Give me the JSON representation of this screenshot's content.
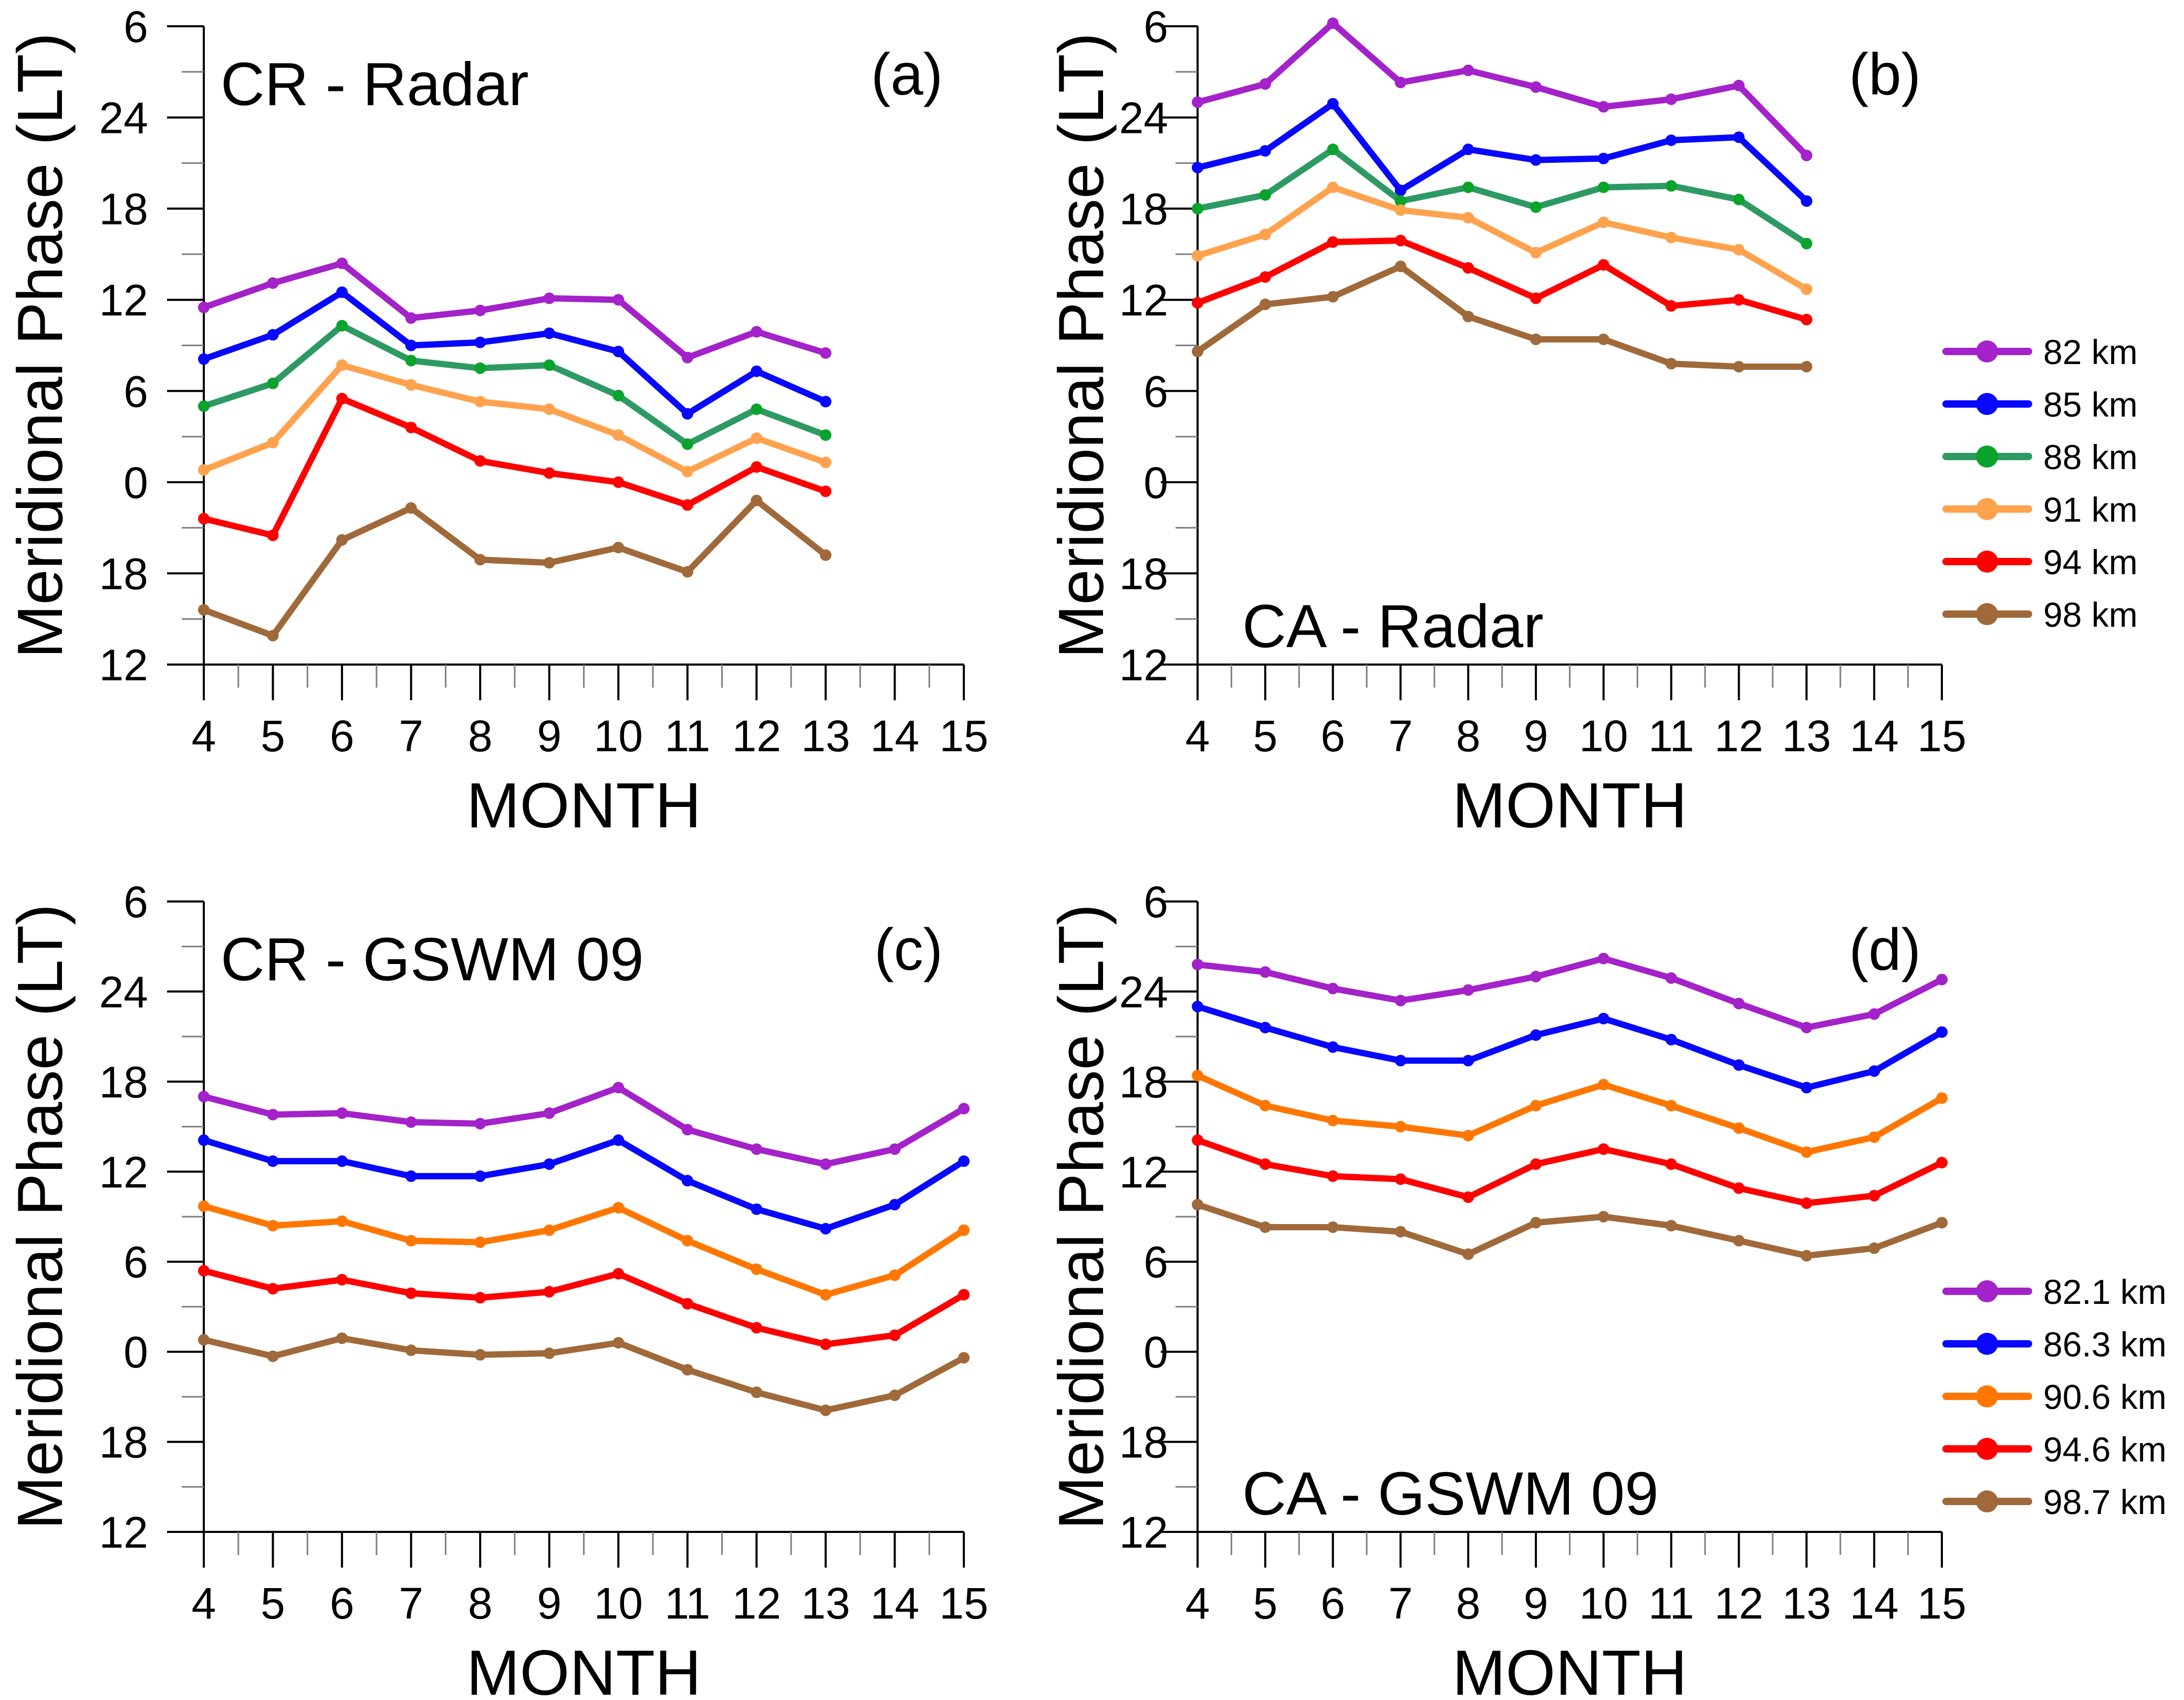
{
  "figure": {
    "y_axis_label": "Meridional Phase (LT)",
    "x_axis_label": "MONTH",
    "y_tick_labels": [
      "6",
      "24",
      "18",
      "12",
      "6",
      "0",
      "18",
      "12"
    ],
    "y_tick_values": [
      30,
      24,
      18,
      12,
      6,
      0,
      -6,
      -12
    ],
    "y_minor_tick_values": [
      27,
      21,
      15,
      9,
      3,
      -3,
      -9
    ],
    "x_ticks": [
      4,
      5,
      6,
      7,
      8,
      9,
      10,
      11,
      12,
      13,
      14,
      15
    ],
    "x_minor_ticks": [
      4.5,
      5.5,
      6.5,
      7.5,
      8.5,
      9.5,
      10.5,
      11.5,
      12.5,
      13.5,
      14.5
    ],
    "x_range": [
      4,
      15
    ],
    "y_linear_range": [
      -12,
      30
    ],
    "grid": "off",
    "colors": {
      "purple": "#a322c9",
      "blue": "#0808ff",
      "green_line": "#2e9a63",
      "green_marker": "#0aa32b",
      "orange_light": "#ffa24e",
      "orange_vivid": "#ff7700",
      "red": "#fe0000",
      "brown": "#a0693a",
      "axis": "#000000",
      "minor_tick": "#7f7f7f"
    }
  },
  "chart_data": [
    {
      "id": "a",
      "type": "line",
      "title": "CR - Radar",
      "panel_letter": "(a)",
      "title_position": "top-left",
      "xlabel": "MONTH",
      "ylabel": "Meridional Phase (LT)",
      "x": [
        4,
        5,
        6,
        7,
        8,
        9,
        10,
        11,
        12,
        13
      ],
      "series": [
        {
          "name": "82 km",
          "color": "#a322c9",
          "values": [
            11.5,
            13.1,
            14.4,
            10.8,
            11.3,
            12.1,
            12.0,
            8.2,
            9.9,
            8.5
          ]
        },
        {
          "name": "85 km",
          "color": "#0808ff",
          "values": [
            8.1,
            9.7,
            12.5,
            9.0,
            9.2,
            9.8,
            8.6,
            4.5,
            7.3,
            5.3
          ]
        },
        {
          "name": "88 km",
          "color": "#2e9a63",
          "marker_color": "#0aa32b",
          "values": [
            5.0,
            6.5,
            10.3,
            8.0,
            7.5,
            7.7,
            5.7,
            2.5,
            4.8,
            3.1
          ]
        },
        {
          "name": "91 km",
          "color": "#ffa24e",
          "values": [
            0.8,
            2.6,
            7.7,
            6.4,
            5.3,
            4.8,
            3.1,
            0.7,
            2.9,
            1.3
          ]
        },
        {
          "name": "94 km",
          "color": "#fe0000",
          "values": [
            -2.4,
            -3.5,
            5.5,
            3.6,
            1.4,
            0.6,
            0.0,
            -1.5,
            1.0,
            -0.6
          ]
        },
        {
          "name": "98 km",
          "color": "#a0693a",
          "values": [
            -8.4,
            -10.1,
            -3.8,
            -1.7,
            -5.1,
            -5.3,
            -4.3,
            -5.9,
            -1.2,
            -4.8
          ]
        }
      ]
    },
    {
      "id": "b",
      "type": "line",
      "title": "CA - Radar",
      "panel_letter": "(b)",
      "title_position": "bottom-left",
      "xlabel": "MONTH",
      "ylabel": "Meridional Phase (LT)",
      "x": [
        4,
        5,
        6,
        7,
        8,
        9,
        10,
        11,
        12,
        13
      ],
      "series": [
        {
          "name": "82 km",
          "color": "#a322c9",
          "values": [
            25.0,
            26.2,
            30.2,
            26.3,
            27.1,
            26.0,
            24.7,
            25.2,
            26.1,
            21.5
          ]
        },
        {
          "name": "85 km",
          "color": "#0808ff",
          "values": [
            20.7,
            21.8,
            24.9,
            19.2,
            21.9,
            21.2,
            21.3,
            22.5,
            22.7,
            18.5
          ]
        },
        {
          "name": "88 km",
          "color": "#2e9a63",
          "marker_color": "#0aa32b",
          "values": [
            18.0,
            18.9,
            21.9,
            18.5,
            19.4,
            18.1,
            19.4,
            19.5,
            18.6,
            15.7
          ]
        },
        {
          "name": "91 km",
          "color": "#ffa24e",
          "values": [
            14.9,
            16.3,
            19.4,
            17.9,
            17.4,
            15.1,
            17.1,
            16.1,
            15.3,
            12.7
          ]
        },
        {
          "name": "94 km",
          "color": "#fe0000",
          "values": [
            11.8,
            13.5,
            15.8,
            15.9,
            14.1,
            12.1,
            14.3,
            11.6,
            12.0,
            10.7
          ]
        },
        {
          "name": "98 km",
          "color": "#a0693a",
          "values": [
            8.6,
            11.7,
            12.2,
            14.2,
            10.9,
            9.4,
            9.4,
            7.8,
            7.6,
            7.6
          ]
        }
      ]
    },
    {
      "id": "c",
      "type": "line",
      "title": "CR - GSWM 09",
      "panel_letter": "(c)",
      "title_position": "top-left",
      "xlabel": "MONTH",
      "ylabel": "Meridional Phase (LT)",
      "x": [
        4,
        5,
        6,
        7,
        8,
        9,
        10,
        11,
        12,
        13,
        14,
        15
      ],
      "series": [
        {
          "name": "82.1 km",
          "color": "#a322c9",
          "values": [
            17.0,
            15.8,
            15.9,
            15.3,
            15.2,
            15.9,
            17.6,
            14.8,
            13.5,
            12.5,
            13.5,
            16.2
          ]
        },
        {
          "name": "86.3 km",
          "color": "#0808ff",
          "values": [
            14.1,
            12.7,
            12.7,
            11.7,
            11.7,
            12.5,
            14.1,
            11.4,
            9.5,
            8.2,
            9.8,
            12.7
          ]
        },
        {
          "name": "90.6 km",
          "color": "#ff7700",
          "values": [
            9.7,
            8.4,
            8.7,
            7.4,
            7.3,
            8.1,
            9.6,
            7.4,
            5.5,
            3.8,
            5.1,
            8.1
          ]
        },
        {
          "name": "94.6 km",
          "color": "#fe0000",
          "values": [
            5.4,
            4.2,
            4.8,
            3.9,
            3.6,
            4.0,
            5.2,
            3.2,
            1.6,
            0.5,
            1.1,
            3.8
          ]
        },
        {
          "name": "98.7 km",
          "color": "#a0693a",
          "values": [
            0.8,
            -0.3,
            0.9,
            0.1,
            -0.2,
            -0.1,
            0.6,
            -1.2,
            -2.7,
            -3.9,
            -2.9,
            -0.4
          ]
        }
      ]
    },
    {
      "id": "d",
      "type": "line",
      "title": "CA - GSWM 09",
      "panel_letter": "(d)",
      "title_position": "bottom-left",
      "xlabel": "MONTH",
      "ylabel": "Meridional Phase (LT)",
      "x": [
        4,
        5,
        6,
        7,
        8,
        9,
        10,
        11,
        12,
        13,
        14,
        15
      ],
      "series": [
        {
          "name": "82.1 km",
          "color": "#a322c9",
          "values": [
            25.8,
            25.3,
            24.2,
            23.4,
            24.1,
            25.0,
            26.2,
            24.9,
            23.2,
            21.6,
            22.5,
            24.8
          ]
        },
        {
          "name": "86.3 km",
          "color": "#0808ff",
          "values": [
            23.0,
            21.6,
            20.3,
            19.4,
            19.4,
            21.1,
            22.2,
            20.8,
            19.1,
            17.6,
            18.7,
            21.3
          ]
        },
        {
          "name": "90.6 km",
          "color": "#ff7700",
          "values": [
            18.4,
            16.4,
            15.4,
            15.0,
            14.4,
            16.4,
            17.8,
            16.4,
            14.9,
            13.3,
            14.3,
            16.9
          ]
        },
        {
          "name": "94.6 km",
          "color": "#fe0000",
          "values": [
            14.1,
            12.5,
            11.7,
            11.5,
            10.3,
            12.5,
            13.5,
            12.5,
            10.9,
            9.9,
            10.4,
            12.6
          ]
        },
        {
          "name": "98.7 km",
          "color": "#a0693a",
          "values": [
            9.8,
            8.3,
            8.3,
            8.0,
            6.5,
            8.6,
            9.0,
            8.4,
            7.4,
            6.4,
            6.9,
            8.6
          ]
        }
      ]
    }
  ],
  "legends": [
    {
      "position": "right-of-panel-b",
      "items": [
        {
          "label": "82 km",
          "color": "#a322c9"
        },
        {
          "label": "85 km",
          "color": "#0808ff"
        },
        {
          "label": "88 km",
          "color": "#2e9a63",
          "marker_color": "#0aa32b"
        },
        {
          "label": "91 km",
          "color": "#ffa24e"
        },
        {
          "label": "94 km",
          "color": "#fe0000"
        },
        {
          "label": "98 km",
          "color": "#a0693a"
        }
      ]
    },
    {
      "position": "right-of-panel-d",
      "items": [
        {
          "label": "82.1 km",
          "color": "#a322c9"
        },
        {
          "label": "86.3 km",
          "color": "#0808ff"
        },
        {
          "label": "90.6 km",
          "color": "#ff7700"
        },
        {
          "label": "94.6 km",
          "color": "#fe0000"
        },
        {
          "label": "98.7 km",
          "color": "#a0693a"
        }
      ]
    }
  ]
}
